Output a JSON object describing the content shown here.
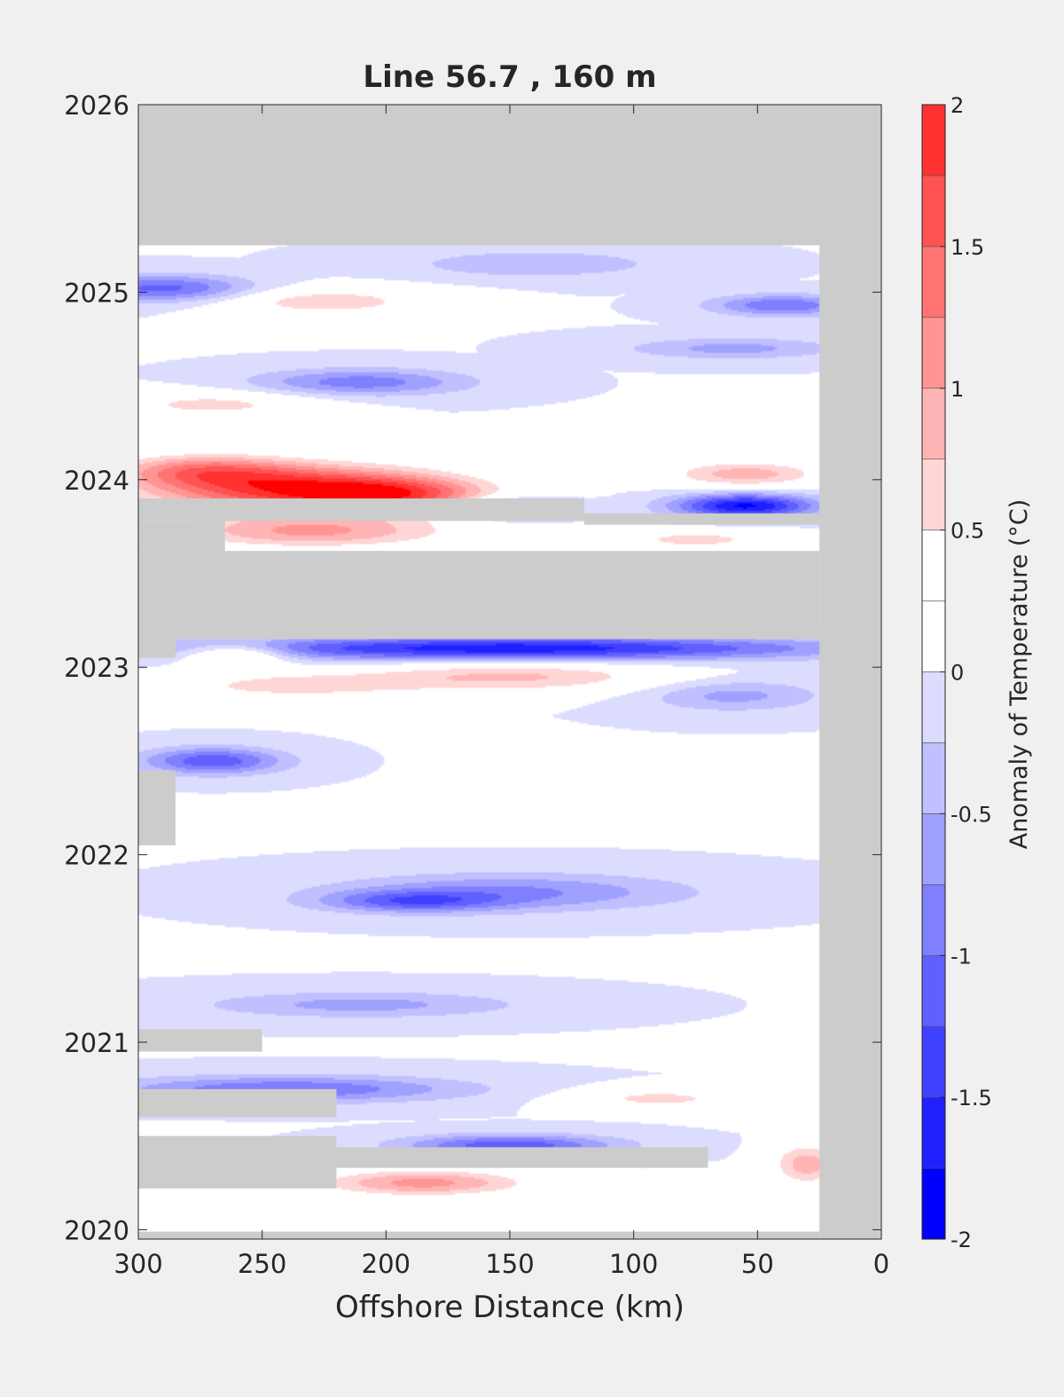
{
  "chart_data": {
    "type": "heatmap",
    "title": "Line 56.7 , 160 m",
    "xlabel": "Offshore Distance (km)",
    "ylabel": "",
    "x_reversed": true,
    "xlim": [
      300,
      0
    ],
    "ylim": [
      2019.95,
      2026
    ],
    "x_ticks": [
      300,
      250,
      200,
      150,
      100,
      50,
      0
    ],
    "y_ticks": [
      2020,
      2021,
      2022,
      2023,
      2024,
      2025,
      2026
    ],
    "grid": false,
    "colorbar": {
      "label": "Anomaly of Temperature (°C)",
      "range": [
        -2,
        2
      ],
      "ticks": [
        2,
        1.5,
        1,
        0.5,
        0,
        -0.5,
        -1,
        -1.5,
        -2
      ],
      "tick_labels": [
        "2",
        "1.5",
        "1",
        "0.5",
        "0",
        "-0.5",
        "-1",
        "-1.5",
        "-2"
      ],
      "levels": [
        -2,
        -1.75,
        -1.5,
        -1.25,
        -1,
        -0.75,
        -0.5,
        -0.25,
        0,
        0.25,
        0.5,
        0.75,
        1,
        1.25,
        1.5,
        1.75,
        2
      ],
      "colors": [
        "#0000ff",
        "#2020ff",
        "#4040ff",
        "#6060ff",
        "#8080ff",
        "#a0a0ff",
        "#c0c0ff",
        "#dcdcff",
        "#ffffff",
        "#ffffff",
        "#ffd6d6",
        "#ffb5b5",
        "#ff9494",
        "#ff7373",
        "#ff5252",
        "#ff3131",
        "#ff0000"
      ]
    },
    "colors": {
      "missing": "#cccccc",
      "background": "#f0f0f0"
    },
    "missing_regions": [
      {
        "x": [
          0,
          300
        ],
        "y": [
          2025.25,
          2026
        ]
      },
      {
        "x": [
          0,
          25
        ],
        "y": [
          2019.95,
          2026
        ]
      },
      {
        "x": [
          25,
          300
        ],
        "y": [
          2023.15,
          2023.62
        ]
      },
      {
        "x": [
          120,
          300
        ],
        "y": [
          2023.78,
          2023.9
        ]
      },
      {
        "x": [
          25,
          120
        ],
        "y": [
          2023.76,
          2023.82
        ]
      },
      {
        "x": [
          265,
          300
        ],
        "y": [
          2023.62,
          2023.78
        ]
      },
      {
        "x": [
          285,
          300
        ],
        "y": [
          2023.05,
          2023.15
        ]
      },
      {
        "x": [
          285,
          300
        ],
        "y": [
          2022.05,
          2022.45
        ]
      },
      {
        "x": [
          250,
          300
        ],
        "y": [
          2020.95,
          2021.07
        ]
      },
      {
        "x": [
          220,
          300
        ],
        "y": [
          2020.6,
          2020.75
        ]
      },
      {
        "x": [
          70,
          300
        ],
        "y": [
          2020.33,
          2020.44
        ]
      },
      {
        "x": [
          220,
          300
        ],
        "y": [
          2020.22,
          2020.5
        ]
      },
      {
        "x": [
          25,
          300
        ],
        "y": [
          2019.95,
          2019.99
        ]
      }
    ],
    "anomalies": [
      {
        "x": 235,
        "y": 2023.95,
        "sx": 42,
        "sy": 0.09,
        "value": 1.9
      },
      {
        "x": 195,
        "y": 2023.92,
        "sx": 25,
        "sy": 0.06,
        "value": 1.0
      },
      {
        "x": 275,
        "y": 2024.05,
        "sx": 25,
        "sy": 0.06,
        "value": 1.0
      },
      {
        "x": 55,
        "y": 2024.03,
        "sx": 22,
        "sy": 0.05,
        "value": 0.9
      },
      {
        "x": 55,
        "y": 2023.86,
        "sx": 20,
        "sy": 0.045,
        "value": -1.8
      },
      {
        "x": 150,
        "y": 2023.85,
        "sx": 15,
        "sy": 0.04,
        "value": -0.9
      },
      {
        "x": 230,
        "y": 2023.72,
        "sx": 40,
        "sy": 0.06,
        "value": 1.0
      },
      {
        "x": 75,
        "y": 2023.68,
        "sx": 25,
        "sy": 0.04,
        "value": 0.6
      },
      {
        "x": 150,
        "y": 2023.1,
        "sx": 90,
        "sy": 0.045,
        "value": -1.7
      },
      {
        "x": 260,
        "y": 2023.07,
        "sx": 15,
        "sy": 0.04,
        "value": 1.0
      },
      {
        "x": 150,
        "y": 2022.95,
        "sx": 45,
        "sy": 0.06,
        "value": 0.8
      },
      {
        "x": 240,
        "y": 2022.9,
        "sx": 35,
        "sy": 0.05,
        "value": 0.6
      },
      {
        "x": 270,
        "y": 2022.5,
        "sx": 20,
        "sy": 0.05,
        "value": -1.2
      },
      {
        "x": 60,
        "y": 2022.85,
        "sx": 25,
        "sy": 0.06,
        "value": -0.6
      },
      {
        "x": 150,
        "y": 2021.8,
        "sx": 50,
        "sy": 0.07,
        "value": -0.8
      },
      {
        "x": 190,
        "y": 2021.75,
        "sx": 25,
        "sy": 0.04,
        "value": -0.9
      },
      {
        "x": 210,
        "y": 2021.2,
        "sx": 45,
        "sy": 0.05,
        "value": -0.6
      },
      {
        "x": 240,
        "y": 2020.75,
        "sx": 50,
        "sy": 0.05,
        "value": -1.0
      },
      {
        "x": 150,
        "y": 2020.45,
        "sx": 30,
        "sy": 0.04,
        "value": -1.2
      },
      {
        "x": 185,
        "y": 2020.25,
        "sx": 30,
        "sy": 0.05,
        "value": 1.1
      },
      {
        "x": 290,
        "y": 2025.02,
        "sx": 25,
        "sy": 0.05,
        "value": -1.1
      },
      {
        "x": 40,
        "y": 2024.93,
        "sx": 20,
        "sy": 0.04,
        "value": -1.0
      },
      {
        "x": 225,
        "y": 2024.95,
        "sx": 30,
        "sy": 0.05,
        "value": 0.7
      },
      {
        "x": 140,
        "y": 2025.15,
        "sx": 35,
        "sy": 0.05,
        "value": -0.5
      },
      {
        "x": 210,
        "y": 2024.52,
        "sx": 30,
        "sy": 0.05,
        "value": -0.9
      },
      {
        "x": 270,
        "y": 2024.4,
        "sx": 30,
        "sy": 0.05,
        "value": 0.6
      },
      {
        "x": 60,
        "y": 2024.7,
        "sx": 30,
        "sy": 0.04,
        "value": -0.6
      },
      {
        "x": 30,
        "y": 2020.35,
        "sx": 10,
        "sy": 0.08,
        "value": 0.9
      },
      {
        "x": 90,
        "y": 2020.7,
        "sx": 25,
        "sy": 0.04,
        "value": 0.6
      }
    ]
  }
}
